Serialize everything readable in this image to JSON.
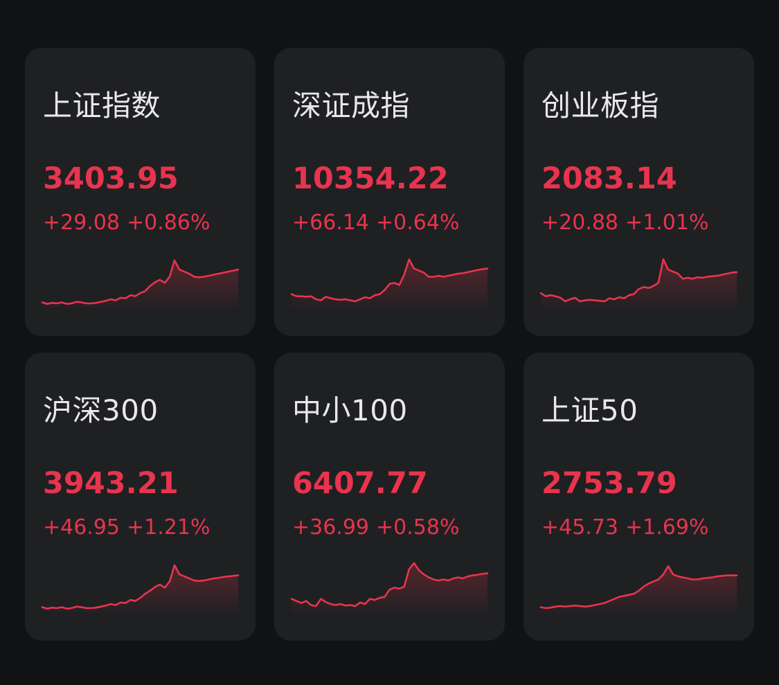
{
  "theme": {
    "up_color": "#e8344e",
    "fill_top": "#e8344e"
  },
  "indices": [
    {
      "name": "上证指数",
      "price": "3403.95",
      "change": "+29.08",
      "change_pct": "+0.86%",
      "sparkline": [
        0.06,
        0.03,
        0.05,
        0.04,
        0.06,
        0.03,
        0.04,
        0.07,
        0.06,
        0.04,
        0.04,
        0.05,
        0.07,
        0.09,
        0.12,
        0.1,
        0.15,
        0.14,
        0.2,
        0.18,
        0.24,
        0.28,
        0.38,
        0.45,
        0.5,
        0.44,
        0.56,
        0.88,
        0.7,
        0.66,
        0.62,
        0.56,
        0.55,
        0.56,
        0.58,
        0.6,
        0.62,
        0.64,
        0.66,
        0.68,
        0.7
      ]
    },
    {
      "name": "深证成指",
      "price": "10354.22",
      "change": "+66.14",
      "change_pct": "+0.64%",
      "sparkline": [
        0.22,
        0.18,
        0.18,
        0.17,
        0.18,
        0.12,
        0.1,
        0.17,
        0.14,
        0.12,
        0.11,
        0.12,
        0.1,
        0.08,
        0.12,
        0.16,
        0.14,
        0.2,
        0.22,
        0.3,
        0.42,
        0.44,
        0.4,
        0.6,
        0.9,
        0.72,
        0.68,
        0.64,
        0.56,
        0.56,
        0.58,
        0.56,
        0.58,
        0.6,
        0.62,
        0.63,
        0.65,
        0.67,
        0.69,
        0.71,
        0.72
      ]
    },
    {
      "name": "创业板指",
      "price": "2083.14",
      "change": "+20.88",
      "change_pct": "+1.01%",
      "sparkline": [
        0.24,
        0.18,
        0.2,
        0.18,
        0.15,
        0.08,
        0.12,
        0.15,
        0.08,
        0.1,
        0.11,
        0.1,
        0.09,
        0.08,
        0.14,
        0.12,
        0.16,
        0.14,
        0.2,
        0.22,
        0.32,
        0.36,
        0.34,
        0.38,
        0.44,
        0.9,
        0.7,
        0.66,
        0.62,
        0.52,
        0.54,
        0.52,
        0.55,
        0.54,
        0.56,
        0.57,
        0.58,
        0.6,
        0.62,
        0.64,
        0.65
      ]
    },
    {
      "name": "沪深300",
      "price": "3943.21",
      "change": "+46.95",
      "change_pct": "+1.21%",
      "sparkline": [
        0.06,
        0.03,
        0.05,
        0.04,
        0.06,
        0.03,
        0.04,
        0.07,
        0.06,
        0.04,
        0.04,
        0.05,
        0.07,
        0.09,
        0.12,
        0.1,
        0.15,
        0.14,
        0.2,
        0.18,
        0.24,
        0.32,
        0.38,
        0.45,
        0.5,
        0.44,
        0.56,
        0.88,
        0.7,
        0.66,
        0.62,
        0.58,
        0.57,
        0.58,
        0.6,
        0.62,
        0.63,
        0.65,
        0.66,
        0.67,
        0.68
      ]
    },
    {
      "name": "中小100",
      "price": "6407.77",
      "change": "+36.99",
      "change_pct": "+0.58%",
      "sparkline": [
        0.22,
        0.18,
        0.14,
        0.18,
        0.1,
        0.08,
        0.22,
        0.16,
        0.12,
        0.1,
        0.12,
        0.09,
        0.1,
        0.08,
        0.15,
        0.12,
        0.22,
        0.2,
        0.24,
        0.26,
        0.4,
        0.44,
        0.42,
        0.46,
        0.8,
        0.92,
        0.78,
        0.7,
        0.64,
        0.6,
        0.58,
        0.6,
        0.58,
        0.62,
        0.64,
        0.62,
        0.66,
        0.68,
        0.69,
        0.71,
        0.72
      ]
    },
    {
      "name": "上证50",
      "price": "2753.79",
      "change": "+45.73",
      "change_pct": "+1.69%",
      "sparkline": [
        0.06,
        0.04,
        0.05,
        0.07,
        0.08,
        0.07,
        0.08,
        0.09,
        0.08,
        0.07,
        0.08,
        0.1,
        0.12,
        0.14,
        0.18,
        0.22,
        0.26,
        0.28,
        0.3,
        0.32,
        0.38,
        0.46,
        0.52,
        0.56,
        0.6,
        0.7,
        0.86,
        0.7,
        0.66,
        0.64,
        0.62,
        0.6,
        0.6,
        0.62,
        0.63,
        0.64,
        0.66,
        0.67,
        0.68,
        0.68,
        0.68
      ]
    }
  ]
}
